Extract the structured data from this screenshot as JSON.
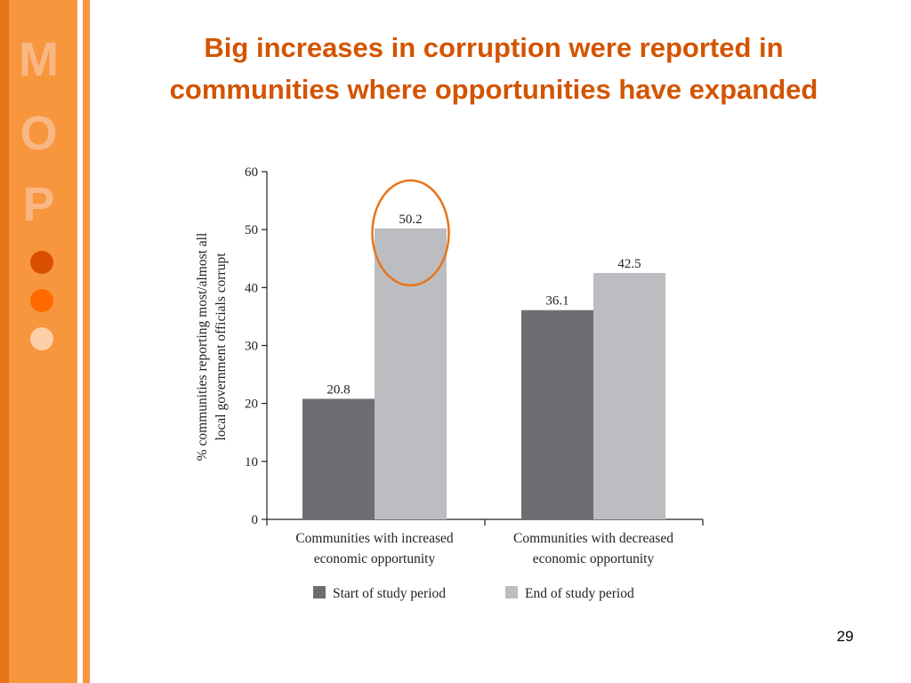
{
  "slide": {
    "title_line1": "Big increases in corruption were reported in",
    "title_line2": "communities where opportunities have expanded",
    "page_number": "29"
  },
  "sidebar": {
    "letters": [
      "M",
      "O",
      "P"
    ],
    "colors": {
      "band": "#f7963d",
      "dark_strip": "#e8741a",
      "letter": "#f9b784",
      "dot_dark": "#d94f00",
      "dot_mid": "#ff6a00",
      "dot_light": "#fbd0a8"
    }
  },
  "colors": {
    "title": "#d35400",
    "start_series": "#6d6e71",
    "end_series": "#bcbdc0",
    "highlight_circle": "#e8741a"
  },
  "chart_data": {
    "type": "bar",
    "title": "",
    "ylabel_line1": "% communities reporting most/almost all",
    "ylabel_line2": "local government officials corrupt",
    "ylim": [
      0,
      60
    ],
    "yticks": [
      0,
      10,
      20,
      30,
      40,
      50,
      60
    ],
    "grid": false,
    "legend_position": "bottom",
    "categories": [
      [
        "Communities with increased",
        "economic opportunity"
      ],
      [
        "Communities with decreased",
        "economic opportunity"
      ]
    ],
    "series": [
      {
        "name": "Start of study period",
        "values": [
          20.8,
          36.1
        ]
      },
      {
        "name": "End of study period",
        "values": [
          50.2,
          42.5
        ]
      }
    ],
    "highlighted_value": "50.2"
  }
}
